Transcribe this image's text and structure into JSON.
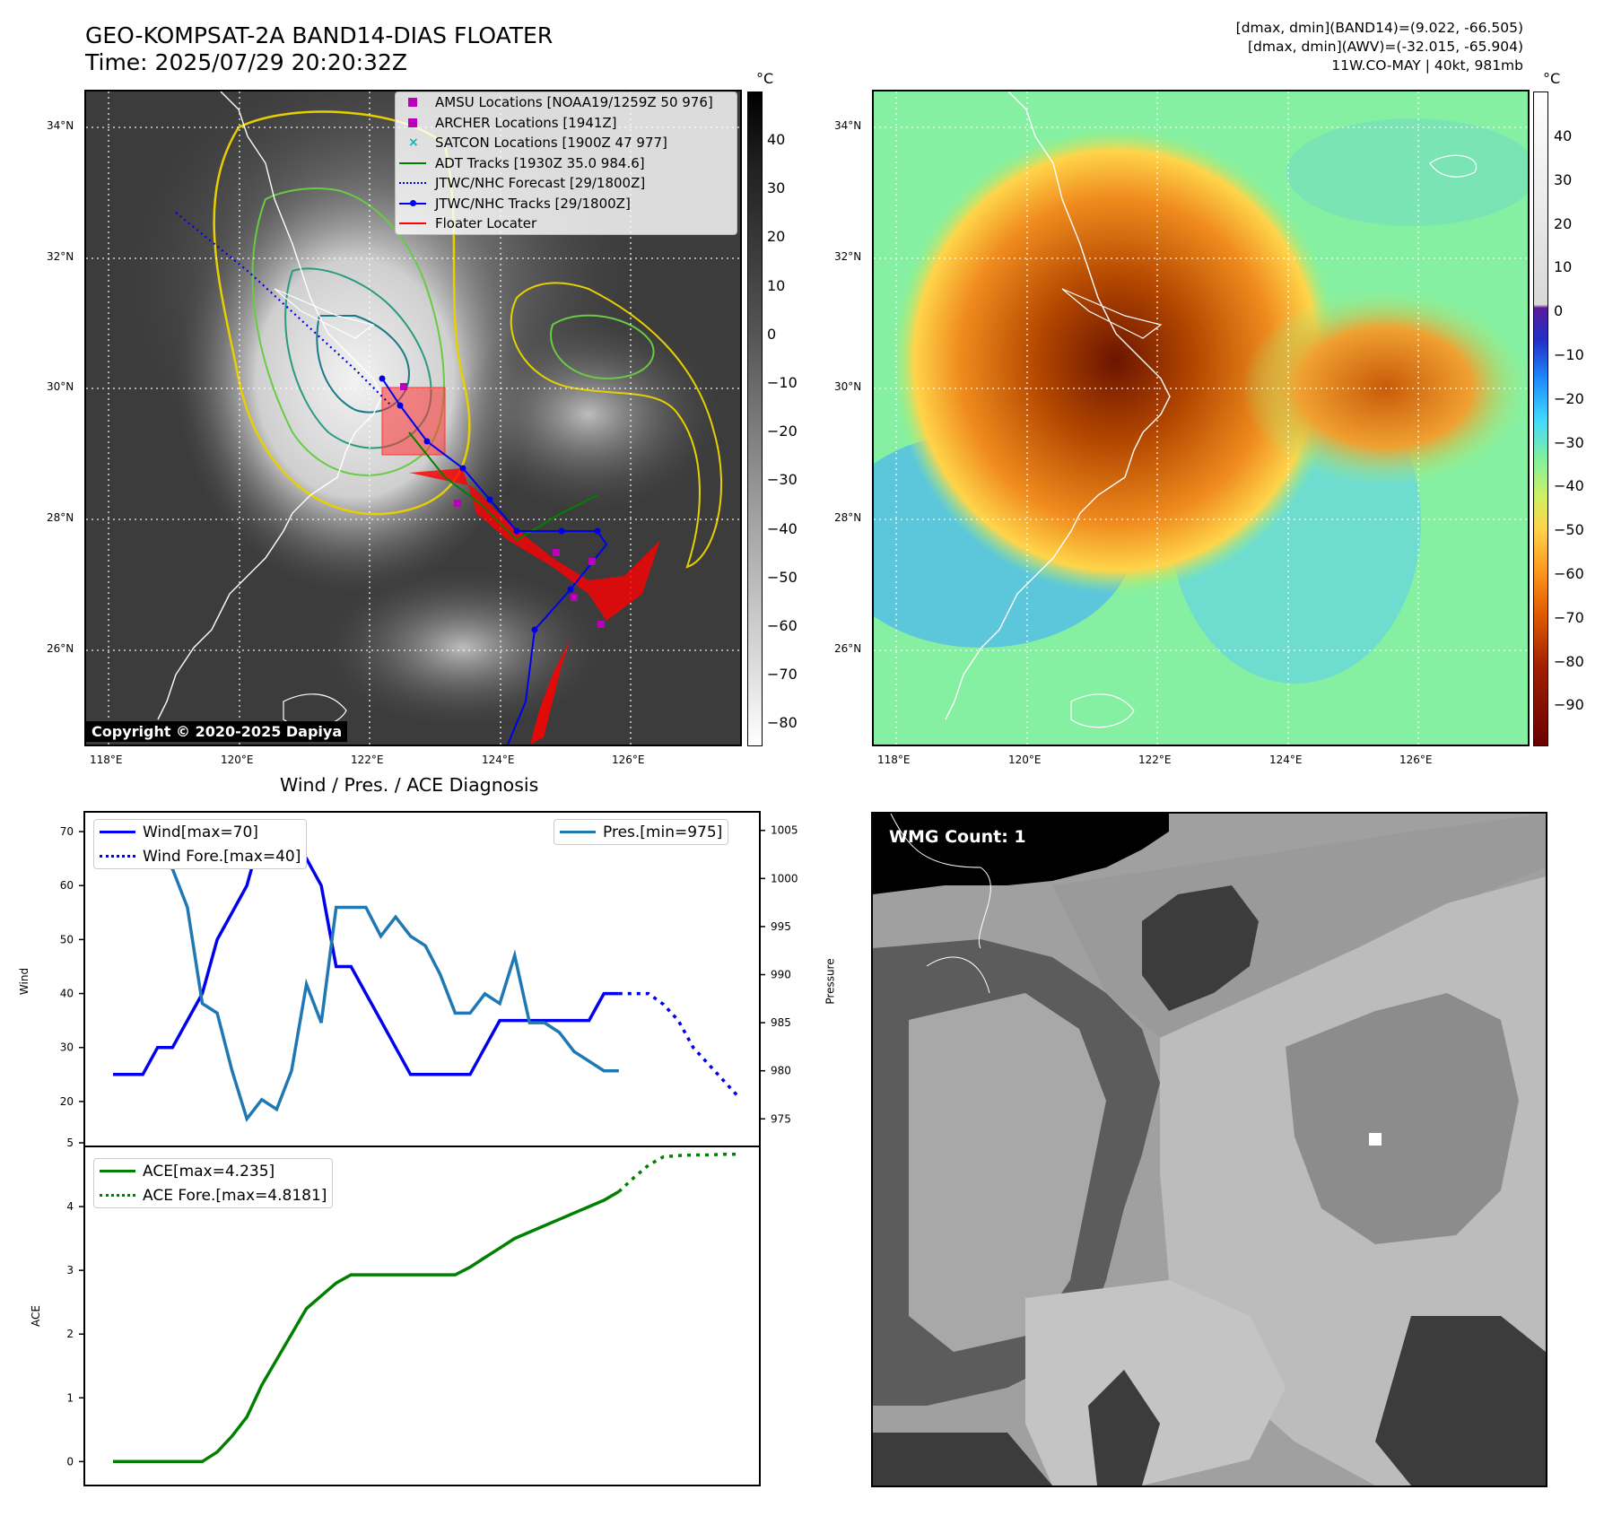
{
  "header": {
    "title_line1": "GEO-KOMPSAT-2A BAND14-DIAS FLOATER",
    "title_line2": "Time: 2025/07/29 20:20:32Z",
    "dmax_band14": "[dmax, dmin](BAND14)=(9.022, -66.505)",
    "dmax_awv": "[dmax, dmin](AWV)=(-32.015, -65.904)",
    "storm_info": "11W.CO-MAY | 40kt, 981mb"
  },
  "map_axes": {
    "lat_labels": [
      "34°N",
      "32°N",
      "30°N",
      "28°N",
      "26°N"
    ],
    "lon_labels": [
      "118°E",
      "120°E",
      "122°E",
      "124°E",
      "126°E"
    ]
  },
  "colorbar_left": {
    "unit": "°C",
    "ticks": [
      "40",
      "30",
      "20",
      "10",
      "0",
      "−10",
      "−20",
      "−30",
      "−40",
      "−50",
      "−60",
      "−70",
      "−80"
    ]
  },
  "colorbar_right": {
    "unit": "°C",
    "ticks": [
      "40",
      "30",
      "20",
      "10",
      "0",
      "−10",
      "−20",
      "−30",
      "−40",
      "−50",
      "−60",
      "−70",
      "−80",
      "−90"
    ]
  },
  "legend": {
    "amsu": "AMSU Locations [NOAA19/1259Z 50 976]",
    "archer": "ARCHER Locations [1941Z]",
    "satcon": "SATCON Locations [1900Z 47 977]",
    "adt": "ADT Tracks [1930Z 35.0 984.6]",
    "jtwc_forecast": "JTWC/NHC Forecast [29/1800Z]",
    "jtwc_tracks": "JTWC/NHC Tracks [29/1800Z]",
    "floater": "Floater Locater"
  },
  "copyright": "Copyright © 2020-2025 Dapiya",
  "colors": {
    "wind": "#0000ee",
    "pressure": "#1f77b4",
    "ace": "#008000",
    "amsu": "#bb00bb",
    "satcon": "#00bbbb",
    "adt": "#008000",
    "floater": "#ff0000"
  },
  "wmg": {
    "label": "WMG Count: 1"
  },
  "chart_data": [
    {
      "type": "line",
      "title": "Wind / Pres. / ACE Diagnosis",
      "ylabel": "Wind",
      "y2label": "Pressure",
      "ylim": [
        15,
        72
      ],
      "y2lim": [
        974,
        1006
      ],
      "yticks": [
        "70",
        "60",
        "50",
        "40",
        "30",
        "20"
      ],
      "y2ticks": [
        "1005",
        "1000",
        "995",
        "990",
        "985",
        "980",
        "975"
      ],
      "series": [
        {
          "name": "Wind[max=70]",
          "axis": "left",
          "style": "solid",
          "x": [
            0,
            1,
            2,
            3,
            4,
            5,
            6,
            7,
            8,
            9,
            10,
            11,
            12,
            13,
            14,
            15,
            16,
            17,
            18,
            19,
            20,
            21,
            22,
            23,
            24,
            25,
            26,
            27,
            28,
            29,
            30,
            31,
            32,
            33,
            34
          ],
          "values": [
            25,
            25,
            25,
            30,
            30,
            35,
            40,
            50,
            55,
            60,
            70,
            65,
            65,
            65,
            60,
            45,
            45,
            40,
            35,
            30,
            25,
            25,
            25,
            25,
            25,
            30,
            35,
            35,
            35,
            35,
            35,
            35,
            35,
            40,
            40
          ]
        },
        {
          "name": "Wind Fore.[max=40]",
          "axis": "left",
          "style": "dotted",
          "x": [
            34,
            35,
            36,
            37,
            38,
            39,
            40,
            41,
            42
          ],
          "values": [
            40,
            40,
            40,
            38,
            35,
            30,
            27,
            24,
            21
          ]
        },
        {
          "name": "Pres.[min=975]",
          "axis": "right",
          "style": "solid",
          "x": [
            0,
            1,
            2,
            3,
            4,
            5,
            6,
            7,
            8,
            9,
            10,
            11,
            12,
            13,
            14,
            15,
            16,
            17,
            18,
            19,
            20,
            21,
            22,
            23,
            24,
            25,
            26,
            27,
            28,
            29,
            30,
            31,
            32,
            33,
            34
          ],
          "values": [
            1005,
            1005,
            1005,
            1002,
            1001,
            997,
            987,
            986,
            980,
            975,
            977,
            976,
            980,
            989,
            985,
            997,
            997,
            997,
            994,
            996,
            994,
            993,
            990,
            986,
            986,
            988,
            987,
            992,
            985,
            985,
            984,
            982,
            981,
            980,
            980
          ]
        }
      ]
    },
    {
      "type": "line",
      "ylabel": "ACE",
      "ylim": [
        -0.15,
        5
      ],
      "yticks": [
        "5",
        "4",
        "3",
        "2",
        "1",
        "0"
      ],
      "series": [
        {
          "name": "ACE[max=4.235]",
          "style": "solid",
          "x": [
            0,
            1,
            2,
            3,
            4,
            5,
            6,
            7,
            8,
            9,
            10,
            11,
            12,
            13,
            14,
            15,
            16,
            17,
            18,
            19,
            20,
            21,
            22,
            23,
            24,
            25,
            26,
            27,
            28,
            29,
            30,
            31,
            32,
            33,
            34
          ],
          "values": [
            0,
            0,
            0,
            0,
            0,
            0,
            0,
            0.15,
            0.4,
            0.7,
            1.2,
            1.6,
            2.0,
            2.4,
            2.6,
            2.8,
            2.93,
            2.93,
            2.93,
            2.93,
            2.93,
            2.93,
            2.93,
            2.93,
            3.05,
            3.2,
            3.35,
            3.5,
            3.6,
            3.7,
            3.8,
            3.9,
            4.0,
            4.1,
            4.235
          ]
        },
        {
          "name": "ACE Fore.[max=4.8181]",
          "style": "dotted",
          "x": [
            34,
            35,
            36,
            37,
            38,
            39,
            40,
            41,
            42
          ],
          "values": [
            4.235,
            4.45,
            4.65,
            4.78,
            4.8,
            4.81,
            4.81,
            4.82,
            4.82
          ]
        }
      ]
    }
  ]
}
